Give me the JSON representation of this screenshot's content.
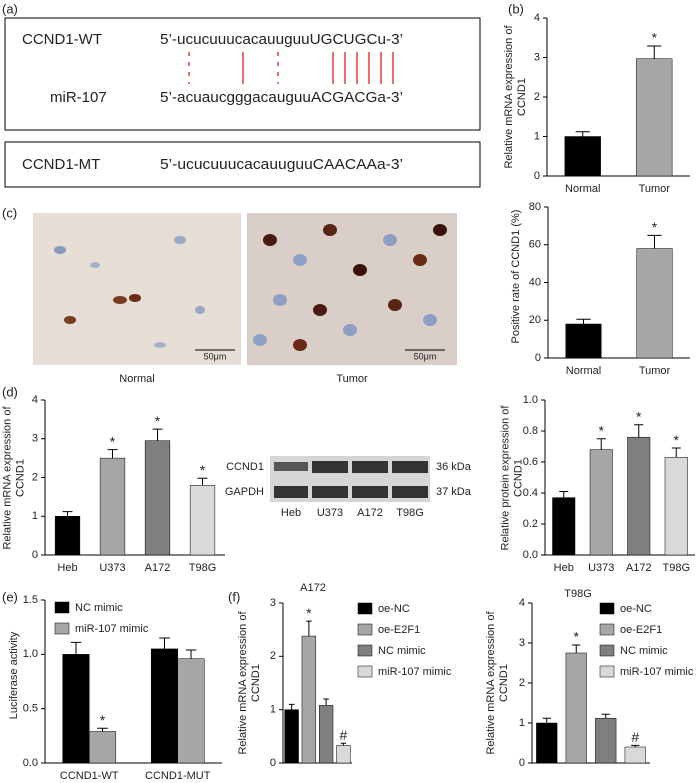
{
  "panel_labels": [
    "(a)",
    "(b)",
    "(c)",
    "(d)",
    "(e)",
    "(f)"
  ],
  "sequences": {
    "wt_name": "CCND1-WT",
    "wt_seq": "5’-ucucuuucacauuguuUGCUGCu-3’",
    "mir_name": "miR-107",
    "mir_seq": "5’-acuaucgggacauguuACGACGa-3’",
    "mt_name": "CCND1-MT",
    "mt_seq": "5’-ucucuuucacauuguuCAACAAa-3’"
  },
  "histology": {
    "scale_bars": [
      "50μm",
      "50μm"
    ],
    "labels": [
      "Normal",
      "Tumor"
    ]
  },
  "blot": {
    "rows": [
      {
        "name": "CCND1",
        "size": "36 kDa"
      },
      {
        "name": "GAPDH",
        "size": "37 kDa"
      }
    ],
    "lanes": [
      "Heb",
      "U373",
      "A172",
      "T98G"
    ]
  },
  "chart_data": [
    {
      "type": "bar",
      "y_label": "Relative mRNA expression of CCND1",
      "categories": [
        "Normal",
        "Tumor"
      ],
      "values": [
        1.0,
        2.97
      ],
      "errors": [
        0.12,
        0.32
      ],
      "significance": [
        null,
        "*"
      ],
      "colors": [
        "#000000",
        "#a6a6a6"
      ],
      "ylim": [
        0,
        4
      ],
      "yticks": [
        0,
        1,
        2,
        3,
        4
      ]
    },
    {
      "type": "bar",
      "y_label": "Positive rate of CCND1 (%)",
      "categories": [
        "Normal",
        "Tumor"
      ],
      "values": [
        18,
        58
      ],
      "errors": [
        2.5,
        7
      ],
      "significance": [
        null,
        "*"
      ],
      "colors": [
        "#000000",
        "#a6a6a6"
      ],
      "ylim": [
        0,
        80
      ],
      "yticks": [
        0,
        20,
        40,
        60,
        80
      ]
    },
    {
      "type": "bar",
      "y_label": "Relative mRNA expression of CCND1",
      "categories": [
        "Heb",
        "U373",
        "A172",
        "T98G"
      ],
      "values": [
        1.0,
        2.5,
        2.95,
        1.8
      ],
      "errors": [
        0.12,
        0.22,
        0.3,
        0.18
      ],
      "significance": [
        null,
        "*",
        "*",
        "*"
      ],
      "colors": [
        "#000000",
        "#a6a6a6",
        "#7f7f7f",
        "#d9d9d9"
      ],
      "ylim": [
        0,
        4
      ],
      "yticks": [
        0,
        1,
        2,
        3,
        4
      ]
    },
    {
      "type": "bar",
      "y_label": "Relative protein expression of CCND1",
      "categories": [
        "Heb",
        "U373",
        "A172",
        "T98G"
      ],
      "values": [
        0.37,
        0.68,
        0.76,
        0.63
      ],
      "errors": [
        0.04,
        0.07,
        0.08,
        0.06
      ],
      "significance": [
        null,
        "*",
        "*",
        "*"
      ],
      "colors": [
        "#000000",
        "#a6a6a6",
        "#7f7f7f",
        "#d9d9d9"
      ],
      "ylim": [
        0,
        1.0
      ],
      "yticks": [
        {
          "value": 0,
          "label": "0.0"
        },
        0.2,
        0.4,
        0.6,
        0.8,
        {
          "value": 1,
          "label": "1.0"
        }
      ]
    },
    {
      "type": "bar",
      "y_label": "Luciferase activity",
      "categories": [
        "CCND1-WT",
        "CCND1-MUT"
      ],
      "series": [
        {
          "name": "NC mimic",
          "color": "#000000",
          "values": [
            1.0,
            1.05
          ],
          "errors": [
            0.11,
            0.1
          ],
          "significance": [
            null,
            null
          ]
        },
        {
          "name": "miR-107 mimic",
          "color": "#a6a6a6",
          "values": [
            0.29,
            0.96
          ],
          "errors": [
            0.03,
            0.08
          ],
          "significance": [
            "*",
            null
          ]
        }
      ],
      "legend": "upper left",
      "ylim": [
        0,
        1.5
      ],
      "yticks": [
        {
          "value": 0,
          "label": "0.0"
        },
        0.5,
        {
          "value": 1,
          "label": "1.0"
        },
        1.5
      ]
    },
    {
      "type": "bar",
      "title": "A172",
      "y_label": "Relative mRNA expression of CCND1",
      "series": [
        {
          "name": "oe-NC",
          "color": "#000000",
          "values": [
            1.0
          ],
          "errors": [
            0.1
          ],
          "significance": [
            null
          ]
        },
        {
          "name": "oe-E2F1",
          "color": "#a6a6a6",
          "values": [
            2.38
          ],
          "errors": [
            0.28
          ],
          "significance": [
            "*"
          ]
        },
        {
          "name": "NC mimic",
          "color": "#7f7f7f",
          "values": [
            1.08
          ],
          "errors": [
            0.12
          ],
          "significance": [
            null
          ]
        },
        {
          "name": "miR-107 mimic",
          "color": "#d9d9d9",
          "values": [
            0.33
          ],
          "errors": [
            0.04
          ],
          "significance": [
            "#"
          ]
        }
      ],
      "legend": "right",
      "ylim": [
        0,
        3
      ],
      "yticks": [
        0,
        1,
        2,
        3
      ]
    },
    {
      "type": "bar",
      "title": "T98G",
      "y_label": "Relative mRNA expression of CCND1",
      "series": [
        {
          "name": "oe-NC",
          "color": "#000000",
          "values": [
            1.0
          ],
          "errors": [
            0.12
          ],
          "significance": [
            null
          ]
        },
        {
          "name": "oe-E2F1",
          "color": "#a6a6a6",
          "values": [
            2.75
          ],
          "errors": [
            0.2
          ],
          "significance": [
            "*"
          ]
        },
        {
          "name": "NC mimic",
          "color": "#7f7f7f",
          "values": [
            1.12
          ],
          "errors": [
            0.1
          ],
          "significance": [
            null
          ]
        },
        {
          "name": "miR-107 mimic",
          "color": "#d9d9d9",
          "values": [
            0.4
          ],
          "errors": [
            0.04
          ],
          "significance": [
            "#"
          ]
        }
      ],
      "legend": "upper right",
      "ylim": [
        0,
        4
      ],
      "yticks": [
        0,
        1,
        2,
        3,
        4
      ]
    }
  ]
}
